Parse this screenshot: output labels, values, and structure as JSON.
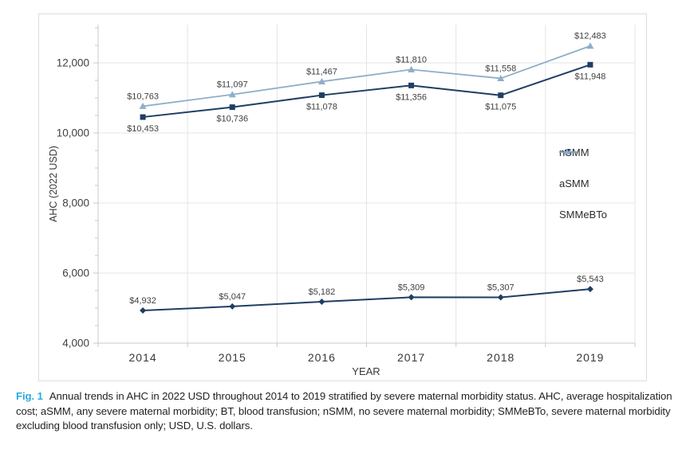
{
  "chart_data": {
    "type": "line",
    "title": "",
    "xlabel": "YEAR",
    "ylabel": "AHC (2022 USD)",
    "categories": [
      "2014",
      "2015",
      "2016",
      "2017",
      "2018",
      "2019"
    ],
    "ylim": [
      4000,
      13000
    ],
    "yticks": [
      4000,
      6000,
      8000,
      10000,
      12000
    ],
    "ytick_labels": [
      "4,000",
      "6,000",
      "8,000",
      "10,000",
      "12,000"
    ],
    "minor_tick_step": 500,
    "grid": "horizontal at major y ticks; vertical at category boundaries",
    "legend_position": "inside-right",
    "series": [
      {
        "name": "nSMM",
        "color": "#1F3E63",
        "marker": "diamond",
        "values": [
          4932,
          5047,
          5182,
          5309,
          5307,
          5543
        ],
        "data_labels": [
          "$4,932",
          "$5,047",
          "$5,182",
          "$5,309",
          "$5,307",
          "$5,543"
        ],
        "label_placement": "above"
      },
      {
        "name": "aSMM",
        "color": "#1F3E63",
        "marker": "square",
        "values": [
          10453,
          10736,
          11078,
          11356,
          11075,
          11948
        ],
        "data_labels": [
          "$10,453",
          "$10,736",
          "$11,078",
          "$11,356",
          "$11,075",
          "$11,948"
        ],
        "label_placement": "below"
      },
      {
        "name": "SMMeBTo",
        "color": "#8FAEC8",
        "marker": "triangle",
        "values": [
          10763,
          11097,
          11467,
          11810,
          11558,
          12483
        ],
        "data_labels": [
          "$10,763",
          "$11,097",
          "$11,467",
          "$11,810",
          "$11,558",
          "$12,483"
        ],
        "label_placement": "above"
      }
    ]
  },
  "caption": {
    "fig_label": "Fig. 1",
    "text": "Annual trends in AHC in 2022 USD throughout 2014 to 2019 stratified by severe maternal morbidity status. AHC, average hospitalization cost; aSMM, any severe maternal morbidity; BT, blood transfusion; nSMM, no severe maternal morbidity; SMMeBTo, severe maternal morbidity excluding blood transfusion only; USD, U.S. dollars.",
    "accent_color": "#29ABE2"
  },
  "style_colors": {
    "grid": "#E4E4E4",
    "axis": "#C9C9C9",
    "tick_text": "#3F3F3F",
    "data_label_text": "#3F3F3F"
  }
}
